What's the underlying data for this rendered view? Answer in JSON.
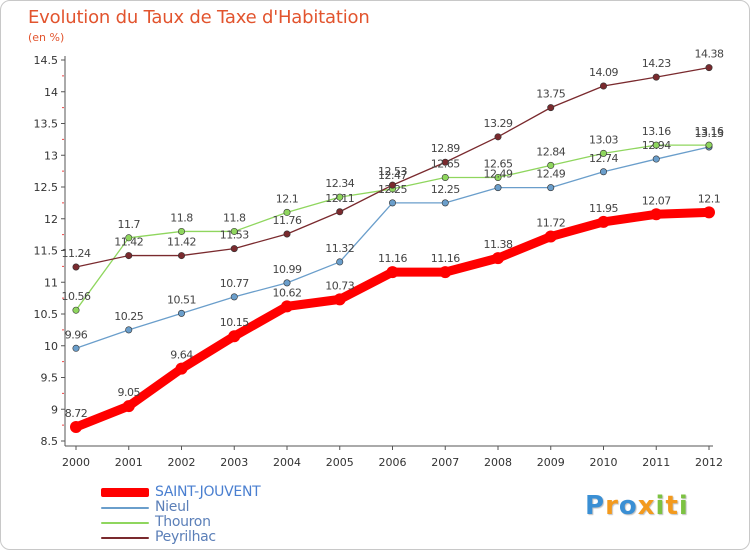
{
  "header": {
    "title": "Evolution du Taux de Taxe d'Habitation",
    "subtitle": "(en %)"
  },
  "logo": {
    "text": "Proxiti",
    "colors": [
      "#3a8fd4",
      "#f39a1e",
      "#7cc242"
    ]
  },
  "chart_data": {
    "type": "line",
    "x": [
      2000,
      2001,
      2002,
      2003,
      2004,
      2005,
      2006,
      2007,
      2008,
      2009,
      2010,
      2011,
      2012
    ],
    "yticks": [
      8.5,
      9,
      9.5,
      10,
      10.5,
      11,
      11.5,
      12,
      12.5,
      13,
      13.5,
      14,
      14.5
    ],
    "ytick_labels": [
      "8.5",
      "9",
      "9.5",
      "10",
      "10.5",
      "11",
      "11.5",
      "12",
      "12.5",
      "13",
      "13.5",
      "14",
      "14.5"
    ],
    "ylim": [
      8.5,
      14.5
    ],
    "grid": false,
    "legend_position": "bottom-left",
    "series": [
      {
        "name": "SAINT-JOUVENT",
        "color": "#ff0000",
        "emphasis": true,
        "values": [
          8.72,
          9.05,
          9.64,
          10.15,
          10.62,
          10.73,
          11.16,
          11.16,
          11.38,
          11.72,
          11.95,
          12.07,
          12.1
        ],
        "labels": [
          "8.72",
          "9.05",
          "9.64",
          "10.15",
          "10.62",
          "10.73",
          "11.16",
          "11.16",
          "11.38",
          "11.72",
          "11.95",
          "12.07",
          "12.1"
        ]
      },
      {
        "name": "Nieul",
        "color": "#6a9ecb",
        "values": [
          9.96,
          10.25,
          10.51,
          10.77,
          10.99,
          11.32,
          12.25,
          12.25,
          12.49,
          12.49,
          12.74,
          12.94,
          13.13
        ],
        "labels": [
          "9.96",
          "10.25",
          "10.51",
          "10.77",
          "10.99",
          "11.32",
          "12.25",
          "12.25",
          "12.49",
          "12.49",
          "12.74",
          "12.94",
          "13.13"
        ]
      },
      {
        "name": "Thouron",
        "color": "#8fd65e",
        "values": [
          10.56,
          11.7,
          11.8,
          11.8,
          12.1,
          12.34,
          12.47,
          12.65,
          12.65,
          12.84,
          13.03,
          13.16,
          13.16
        ],
        "labels": [
          "10.56",
          "11.7",
          "11.8",
          "11.8",
          "12.1",
          "12.34",
          "12.47",
          "12.65",
          "12.65",
          "12.84",
          "13.03",
          "13.16",
          "13.16"
        ]
      },
      {
        "name": "Peyrilhac",
        "color": "#7a2a2e",
        "values": [
          11.24,
          11.42,
          11.42,
          11.53,
          11.76,
          12.11,
          12.53,
          12.89,
          13.29,
          13.75,
          14.09,
          14.23,
          14.38
        ],
        "labels": [
          "11.24",
          "11.42",
          "11.42",
          "11.53",
          "11.76",
          "12.11",
          "12.53",
          "12.89",
          "13.29",
          "13.75",
          "14.09",
          "14.23",
          "14.38"
        ]
      }
    ]
  }
}
